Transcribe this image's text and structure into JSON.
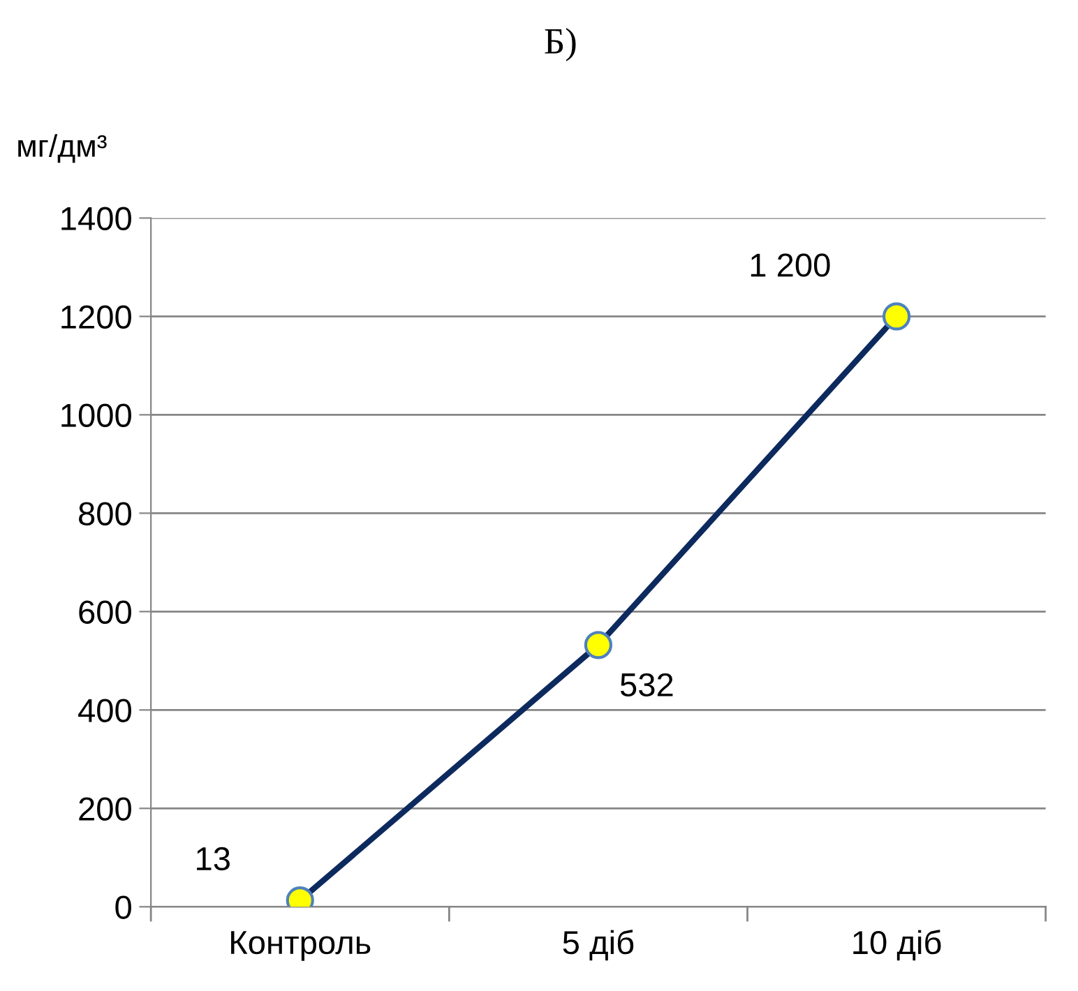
{
  "chart_data": {
    "type": "line",
    "title": "Б)",
    "ylabel": "мг/дм³",
    "categories": [
      "Контроль",
      "5 діб",
      "10 діб"
    ],
    "series": [
      {
        "color": "#0d2a5e",
        "values": [
          13,
          532,
          1200
        ],
        "value_labels": [
          "13",
          "532",
          "1 200"
        ]
      }
    ],
    "ylim": [
      0,
      1400
    ],
    "yticks": [
      0,
      200,
      400,
      600,
      800,
      1000,
      1200,
      1400
    ],
    "grid": "y",
    "marker": "circle",
    "line_style": "solid"
  }
}
